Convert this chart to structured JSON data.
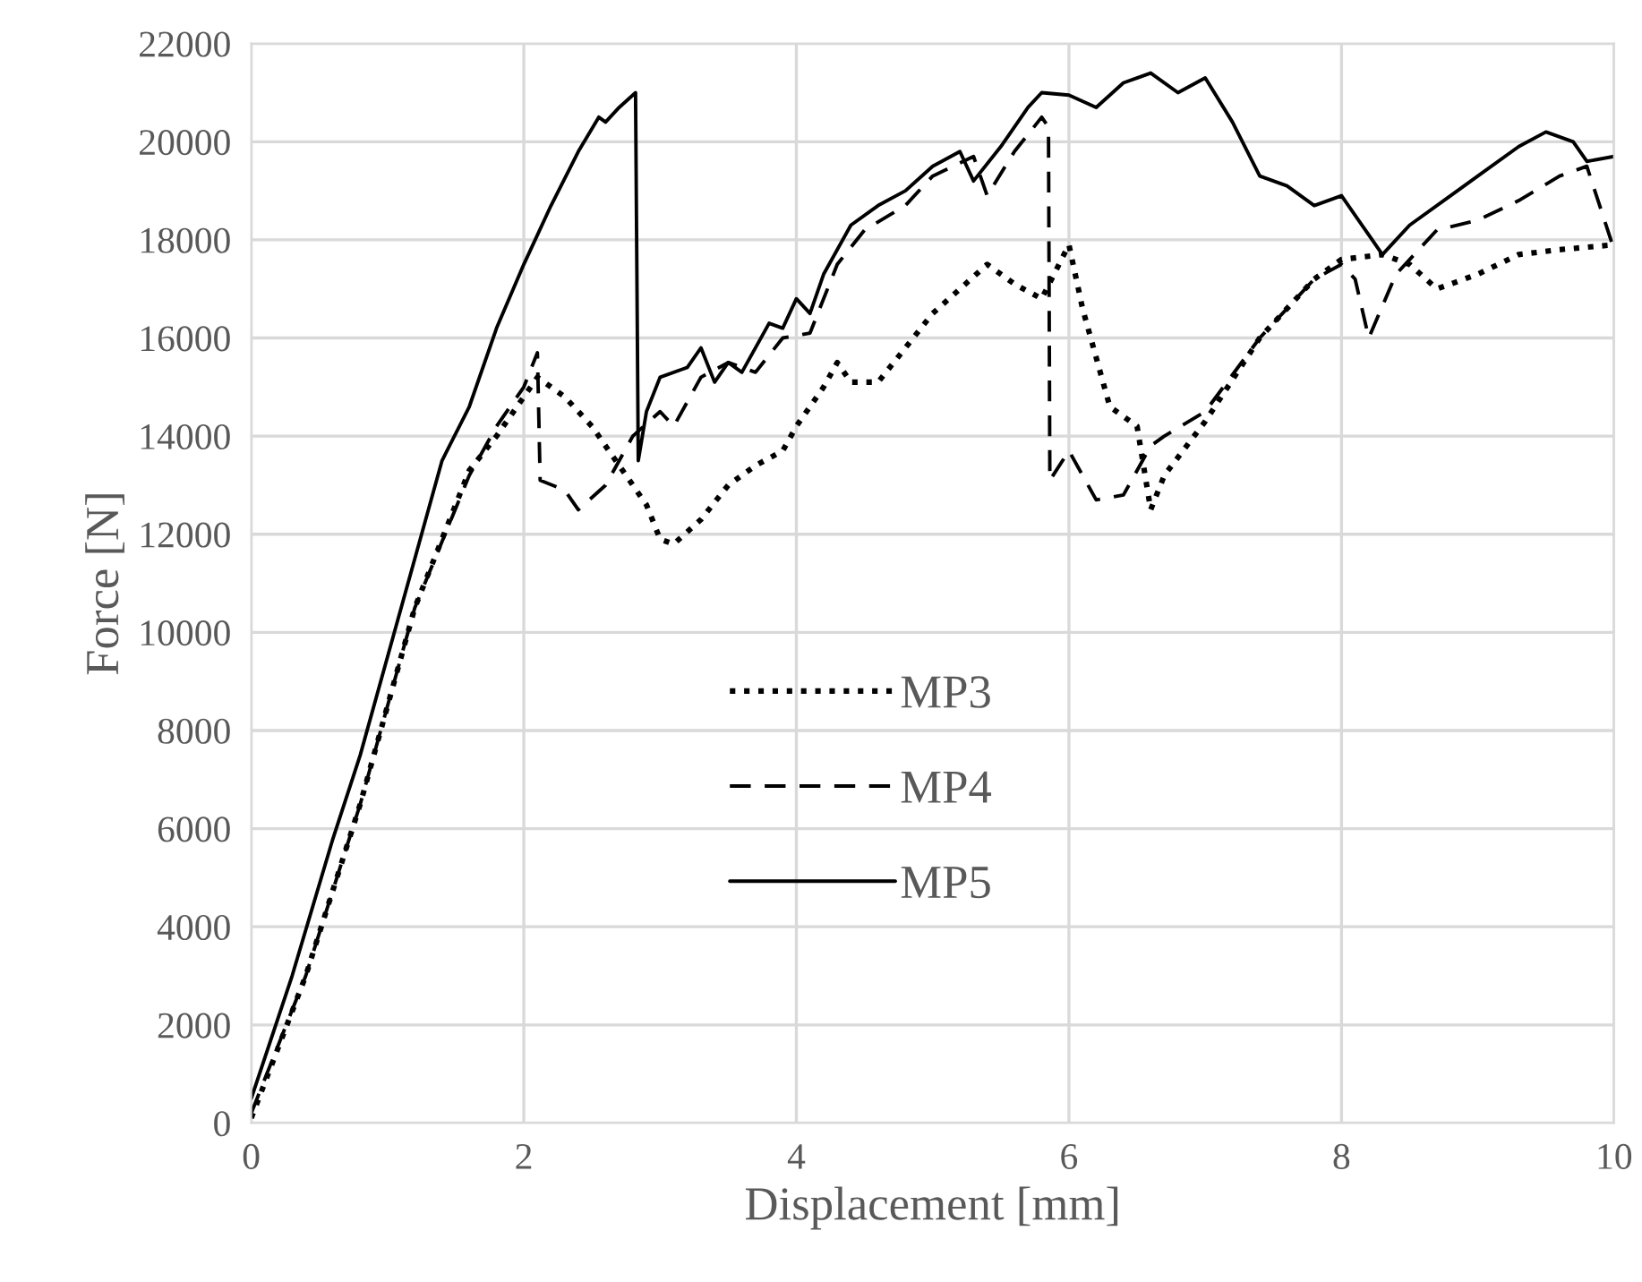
{
  "chart_data": {
    "type": "line",
    "xlabel": "Displacement [mm]",
    "ylabel": "Force [N]",
    "xlim": [
      0,
      10
    ],
    "xticks": [
      0,
      2,
      4,
      6,
      8,
      10
    ],
    "ylim": [
      0,
      22000
    ],
    "yticks": [
      0,
      2000,
      4000,
      6000,
      8000,
      10000,
      12000,
      14000,
      16000,
      18000,
      20000,
      22000
    ],
    "grid": true,
    "legend": "lower center",
    "series": [
      {
        "name": "MP3",
        "color": "#000000",
        "line_style": "dotted",
        "x": [
          0,
          0.4,
          0.8,
          1.2,
          1.6,
          1.8,
          2.0,
          2.1,
          2.3,
          2.5,
          2.7,
          2.9,
          3.0,
          3.1,
          3.3,
          3.5,
          3.7,
          3.9,
          4.0,
          4.2,
          4.3,
          4.4,
          4.6,
          4.8,
          5.0,
          5.2,
          5.4,
          5.6,
          5.8,
          6.0,
          6.1,
          6.3,
          6.5,
          6.6,
          6.7,
          7.0,
          7.4,
          7.8,
          8.0,
          8.3,
          8.5,
          8.7,
          9.0,
          9.3,
          9.6,
          10.0
        ],
        "values": [
          100,
          3000,
          6500,
          10500,
          13300,
          14000,
          14800,
          15200,
          14800,
          14200,
          13400,
          12600,
          11900,
          11800,
          12300,
          13000,
          13400,
          13700,
          14200,
          15000,
          15500,
          15100,
          15100,
          15800,
          16500,
          17000,
          17500,
          17100,
          16800,
          17900,
          16600,
          14600,
          14200,
          12500,
          13200,
          14300,
          16000,
          17200,
          17600,
          17700,
          17500,
          17000,
          17300,
          17700,
          17800,
          17900
        ]
      },
      {
        "name": "MP4",
        "color": "#000000",
        "line_style": "dashed",
        "x": [
          0,
          0.4,
          0.8,
          1.2,
          1.6,
          1.8,
          2.0,
          2.1,
          2.12,
          2.3,
          2.4,
          2.6,
          2.8,
          3.0,
          3.1,
          3.3,
          3.5,
          3.7,
          3.9,
          4.1,
          4.3,
          4.5,
          4.8,
          5.0,
          5.3,
          5.4,
          5.6,
          5.8,
          5.85,
          5.86,
          6.0,
          6.2,
          6.4,
          6.6,
          6.7,
          7.0,
          7.4,
          7.8,
          8.0,
          8.1,
          8.2,
          8.4,
          8.7,
          9.0,
          9.3,
          9.6,
          9.8,
          10.0
        ],
        "values": [
          200,
          3000,
          6500,
          10500,
          13200,
          14200,
          15000,
          15700,
          13100,
          12900,
          12500,
          13000,
          14000,
          14500,
          14200,
          15200,
          15500,
          15300,
          16000,
          16100,
          17500,
          18200,
          18700,
          19300,
          19700,
          18900,
          19800,
          20500,
          20300,
          13100,
          13700,
          12700,
          12800,
          13800,
          14000,
          14500,
          16000,
          17200,
          17500,
          17200,
          16000,
          17300,
          18200,
          18400,
          18800,
          19300,
          19500,
          17800
        ]
      },
      {
        "name": "MP5",
        "color": "#000000",
        "line_style": "solid",
        "x": [
          0,
          0.3,
          0.6,
          0.8,
          1.0,
          1.2,
          1.4,
          1.6,
          1.8,
          2.0,
          2.2,
          2.4,
          2.55,
          2.6,
          2.7,
          2.82,
          2.84,
          2.9,
          3.0,
          3.2,
          3.3,
          3.4,
          3.5,
          3.6,
          3.8,
          3.9,
          4.0,
          4.1,
          4.2,
          4.4,
          4.6,
          4.8,
          5.0,
          5.2,
          5.3,
          5.5,
          5.7,
          5.8,
          6.0,
          6.2,
          6.4,
          6.6,
          6.8,
          7.0,
          7.2,
          7.4,
          7.6,
          7.8,
          8.0,
          8.2,
          8.3,
          8.5,
          8.8,
          9.0,
          9.3,
          9.5,
          9.7,
          9.8,
          10.0
        ],
        "values": [
          500,
          3000,
          5800,
          7500,
          9500,
          11500,
          13500,
          14600,
          16200,
          17500,
          18700,
          19800,
          20500,
          20400,
          20700,
          21000,
          13500,
          14500,
          15200,
          15400,
          15800,
          15100,
          15500,
          15300,
          16300,
          16200,
          16800,
          16500,
          17300,
          18300,
          18700,
          19000,
          19500,
          19800,
          19200,
          19900,
          20700,
          21000,
          20950,
          20700,
          21200,
          21400,
          21000,
          21300,
          20400,
          19300,
          19100,
          18700,
          18900,
          18100,
          17700,
          18300,
          18900,
          19300,
          19900,
          20200,
          20000,
          19600,
          19700
        ]
      }
    ]
  }
}
